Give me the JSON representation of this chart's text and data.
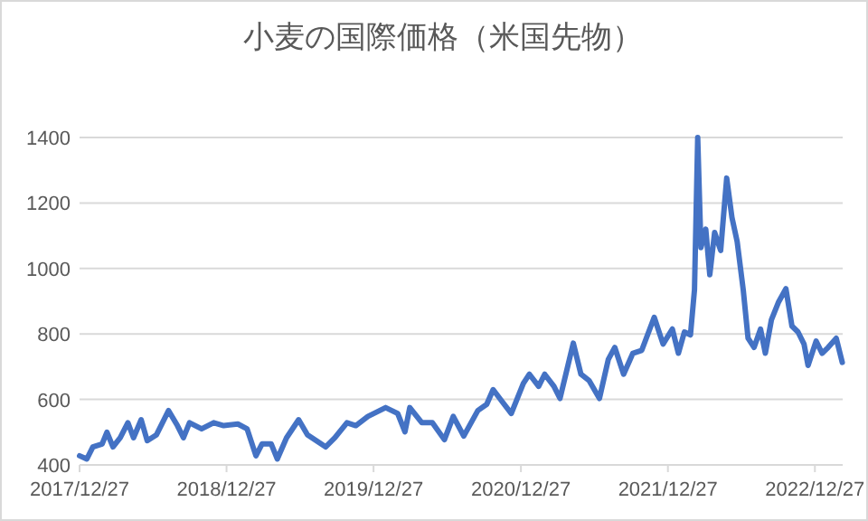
{
  "chart_data": {
    "type": "line",
    "title": "小麦の国際価格（米国先物）",
    "x": [
      "2017-12-27",
      "2018-01-14",
      "2018-01-29",
      "2018-02-21",
      "2018-03-05",
      "2018-03-20",
      "2018-04-07",
      "2018-04-26",
      "2018-05-10",
      "2018-05-29",
      "2018-06-13",
      "2018-07-06",
      "2018-08-05",
      "2018-08-27",
      "2018-09-11",
      "2018-09-26",
      "2018-10-26",
      "2018-11-25",
      "2018-12-20",
      "2019-01-24",
      "2019-02-16",
      "2019-03-10",
      "2019-03-25",
      "2019-04-17",
      "2019-05-02",
      "2019-05-25",
      "2019-06-24",
      "2019-07-16",
      "2019-08-30",
      "2019-09-22",
      "2019-10-22",
      "2019-11-13",
      "2019-12-13",
      "2020-01-26",
      "2020-02-25",
      "2020-03-14",
      "2020-03-26",
      "2020-04-25",
      "2020-05-21",
      "2020-06-20",
      "2020-07-12",
      "2020-08-07",
      "2020-09-11",
      "2020-10-03",
      "2020-10-19",
      "2020-11-10",
      "2020-12-03",
      "2021-01-02",
      "2021-01-17",
      "2021-02-09",
      "2021-02-24",
      "2021-03-19",
      "2021-04-03",
      "2021-04-21",
      "2021-05-06",
      "2021-05-25",
      "2021-06-14",
      "2021-07-10",
      "2021-08-01",
      "2021-08-17",
      "2021-09-08",
      "2021-10-01",
      "2021-10-23",
      "2021-11-23",
      "2021-12-15",
      "2022-01-07",
      "2022-01-22",
      "2022-02-06",
      "2022-02-21",
      "2022-03-03",
      "2022-03-11",
      "2022-03-19",
      "2022-03-31",
      "2022-04-10",
      "2022-04-22",
      "2022-05-07",
      "2022-05-22",
      "2022-06-04",
      "2022-06-17",
      "2022-07-02",
      "2022-07-14",
      "2022-07-29",
      "2022-08-14",
      "2022-08-26",
      "2022-09-10",
      "2022-09-28",
      "2022-10-16",
      "2022-10-31",
      "2022-11-15",
      "2022-11-30",
      "2022-12-10",
      "2022-12-30",
      "2023-01-14",
      "2023-01-29",
      "2023-02-18",
      "2023-03-05"
    ],
    "series": [
      {
        "color": "#4472c4",
        "values": [
          428,
          418,
          455,
          464,
          500,
          455,
          483,
          529,
          483,
          538,
          474,
          492,
          566,
          520,
          483,
          529,
          510,
          529,
          520,
          525,
          510,
          428,
          464,
          464,
          418,
          483,
          538,
          492,
          455,
          483,
          529,
          520,
          548,
          575,
          557,
          501,
          575,
          529,
          529,
          477,
          548,
          488,
          566,
          585,
          630,
          594,
          557,
          649,
          677,
          640,
          677,
          640,
          603,
          695,
          772,
          677,
          658,
          603,
          722,
          759,
          677,
          741,
          750,
          851,
          769,
          815,
          741,
          806,
          797,
          935,
          1400,
          1064,
          1120,
          981,
          1110,
          1055,
          1276,
          1156,
          1082,
          935,
          787,
          759,
          815,
          741,
          843,
          898,
          938,
          824,
          806,
          769,
          704,
          778,
          741,
          759,
          787,
          713
        ]
      }
    ],
    "xlim": [
      "2017-12-27",
      "2023-03-06"
    ],
    "xticks": [
      {
        "value": "2017-12-27",
        "label": "2017/12/27"
      },
      {
        "value": "2018-12-27",
        "label": "2018/12/27"
      },
      {
        "value": "2019-12-27",
        "label": "2019/12/27"
      },
      {
        "value": "2020-12-27",
        "label": "2020/12/27"
      },
      {
        "value": "2021-12-27",
        "label": "2021/12/27"
      },
      {
        "value": "2022-12-27",
        "label": "2022/12/27"
      }
    ],
    "ylim": [
      400,
      1400
    ],
    "yticks": [
      400,
      600,
      800,
      1000,
      1200,
      1400
    ],
    "grid": "y"
  }
}
